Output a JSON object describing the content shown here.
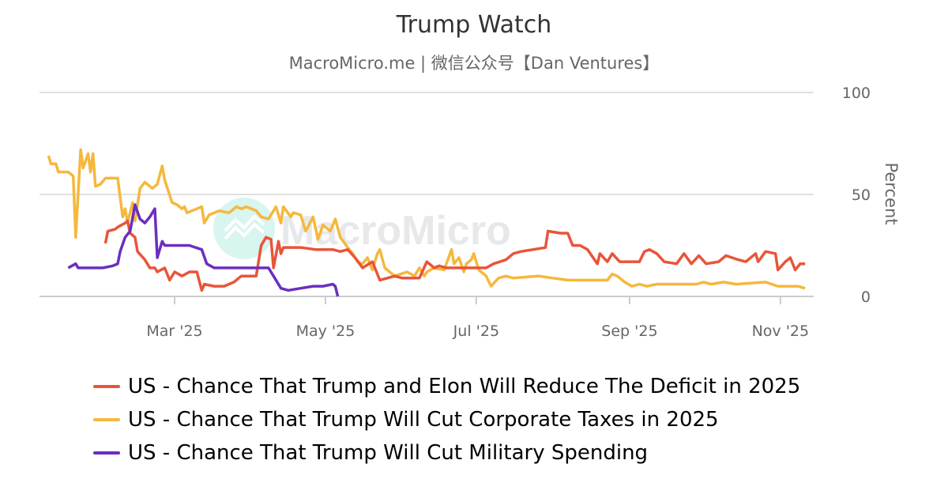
{
  "chart_data": {
    "type": "line",
    "title": "Trump Watch",
    "subtitle": "MacroMicro.me | 微信公众号【Dan Ventures】",
    "watermark": "MacroMicro",
    "ylabel": "Percent",
    "ylim": [
      0,
      100
    ],
    "yticks": [
      "0",
      "50",
      "100"
    ],
    "xlim": [
      "2025-01-05",
      "2025-11-15"
    ],
    "xticks": [
      {
        "date": "2025-03-01",
        "label": "Mar '25"
      },
      {
        "date": "2025-05-01",
        "label": "May '25"
      },
      {
        "date": "2025-07-01",
        "label": "Jul '25"
      },
      {
        "date": "2025-09-01",
        "label": "Sep '25"
      },
      {
        "date": "2025-11-01",
        "label": "Nov '25"
      }
    ],
    "grid": "horizontal",
    "legend_position": "bottom",
    "series": [
      {
        "name": "US - Chance That Trump and Elon Will Reduce The Deficit in 2025",
        "color": "#e8553a",
        "points": [
          [
            "2025-02-01",
            26
          ],
          [
            "2025-02-02",
            32
          ],
          [
            "2025-02-05",
            33
          ],
          [
            "2025-02-06",
            34
          ],
          [
            "2025-02-09",
            36
          ],
          [
            "2025-02-10",
            37
          ],
          [
            "2025-02-11",
            31
          ],
          [
            "2025-02-13",
            29
          ],
          [
            "2025-02-14",
            22
          ],
          [
            "2025-02-17",
            18
          ],
          [
            "2025-02-19",
            14
          ],
          [
            "2025-02-21",
            14
          ],
          [
            "2025-02-22",
            12
          ],
          [
            "2025-02-25",
            14
          ],
          [
            "2025-02-27",
            8
          ],
          [
            "2025-03-01",
            12
          ],
          [
            "2025-03-04",
            10
          ],
          [
            "2025-03-07",
            12
          ],
          [
            "2025-03-10",
            12
          ],
          [
            "2025-03-12",
            3
          ],
          [
            "2025-03-13",
            6
          ],
          [
            "2025-03-17",
            5
          ],
          [
            "2025-03-21",
            5
          ],
          [
            "2025-03-25",
            7
          ],
          [
            "2025-03-28",
            10
          ],
          [
            "2025-03-31",
            10
          ],
          [
            "2025-04-03",
            10
          ],
          [
            "2025-04-05",
            25
          ],
          [
            "2025-04-07",
            29
          ],
          [
            "2025-04-09",
            28
          ],
          [
            "2025-04-10",
            14
          ],
          [
            "2025-04-12",
            27
          ],
          [
            "2025-04-13",
            21
          ],
          [
            "2025-04-14",
            24
          ],
          [
            "2025-04-21",
            24
          ],
          [
            "2025-04-27",
            23
          ],
          [
            "2025-05-04",
            23
          ],
          [
            "2025-05-07",
            22
          ],
          [
            "2025-05-10",
            23
          ],
          [
            "2025-05-13",
            19
          ],
          [
            "2025-05-16",
            14
          ],
          [
            "2025-05-20",
            17
          ],
          [
            "2025-05-23",
            8
          ],
          [
            "2025-05-26",
            9
          ],
          [
            "2025-05-29",
            10
          ],
          [
            "2025-06-01",
            9
          ],
          [
            "2025-06-05",
            9
          ],
          [
            "2025-06-08",
            9
          ],
          [
            "2025-06-11",
            17
          ],
          [
            "2025-06-14",
            14
          ],
          [
            "2025-06-16",
            15
          ],
          [
            "2025-06-19",
            14
          ],
          [
            "2025-06-24",
            14
          ],
          [
            "2025-06-30",
            14
          ],
          [
            "2025-07-05",
            14
          ],
          [
            "2025-07-08",
            16
          ],
          [
            "2025-07-13",
            18
          ],
          [
            "2025-07-16",
            21
          ],
          [
            "2025-07-19",
            22
          ],
          [
            "2025-07-24",
            23
          ],
          [
            "2025-07-29",
            24
          ],
          [
            "2025-07-30",
            32
          ],
          [
            "2025-08-04",
            31
          ],
          [
            "2025-08-07",
            31
          ],
          [
            "2025-08-09",
            25
          ],
          [
            "2025-08-12",
            25
          ],
          [
            "2025-08-15",
            23
          ],
          [
            "2025-08-19",
            16
          ],
          [
            "2025-08-20",
            21
          ],
          [
            "2025-08-23",
            17
          ],
          [
            "2025-08-25",
            21
          ],
          [
            "2025-08-28",
            17
          ],
          [
            "2025-09-05",
            17
          ],
          [
            "2025-09-07",
            22
          ],
          [
            "2025-09-09",
            23
          ],
          [
            "2025-09-12",
            21
          ],
          [
            "2025-09-15",
            17
          ],
          [
            "2025-09-20",
            16
          ],
          [
            "2025-09-23",
            21
          ],
          [
            "2025-09-26",
            16
          ],
          [
            "2025-09-29",
            20
          ],
          [
            "2025-10-02",
            16
          ],
          [
            "2025-10-07",
            17
          ],
          [
            "2025-10-10",
            20
          ],
          [
            "2025-10-15",
            18
          ],
          [
            "2025-10-18",
            17
          ],
          [
            "2025-10-22",
            21
          ],
          [
            "2025-10-23",
            17
          ],
          [
            "2025-10-26",
            22
          ],
          [
            "2025-10-30",
            21
          ],
          [
            "2025-10-31",
            13
          ],
          [
            "2025-11-03",
            17
          ],
          [
            "2025-11-05",
            19
          ],
          [
            "2025-11-07",
            13
          ],
          [
            "2025-11-09",
            16
          ],
          [
            "2025-11-11",
            16
          ]
        ]
      },
      {
        "name": "US - Chance That Trump Will Cut Corporate Taxes in 2025",
        "color": "#f5b83d",
        "points": [
          [
            "2025-01-09",
            69
          ],
          [
            "2025-01-10",
            65
          ],
          [
            "2025-01-12",
            65
          ],
          [
            "2025-01-13",
            61
          ],
          [
            "2025-01-17",
            61
          ],
          [
            "2025-01-19",
            59
          ],
          [
            "2025-01-20",
            29
          ],
          [
            "2025-01-22",
            72
          ],
          [
            "2025-01-23",
            63
          ],
          [
            "2025-01-25",
            70
          ],
          [
            "2025-01-26",
            61
          ],
          [
            "2025-01-27",
            70
          ],
          [
            "2025-01-28",
            54
          ],
          [
            "2025-01-30",
            55
          ],
          [
            "2025-02-01",
            58
          ],
          [
            "2025-02-06",
            58
          ],
          [
            "2025-02-08",
            39
          ],
          [
            "2025-02-09",
            43
          ],
          [
            "2025-02-10",
            36
          ],
          [
            "2025-02-12",
            46
          ],
          [
            "2025-02-13",
            37
          ],
          [
            "2025-02-15",
            53
          ],
          [
            "2025-02-17",
            56
          ],
          [
            "2025-02-20",
            53
          ],
          [
            "2025-02-22",
            55
          ],
          [
            "2025-02-24",
            64
          ],
          [
            "2025-02-25",
            57
          ],
          [
            "2025-02-28",
            46
          ],
          [
            "2025-03-02",
            45
          ],
          [
            "2025-03-04",
            43
          ],
          [
            "2025-03-05",
            44
          ],
          [
            "2025-03-06",
            41
          ],
          [
            "2025-03-12",
            44
          ],
          [
            "2025-03-13",
            36
          ],
          [
            "2025-03-15",
            40
          ],
          [
            "2025-03-17",
            41
          ],
          [
            "2025-03-19",
            42
          ],
          [
            "2025-03-23",
            41
          ],
          [
            "2025-03-26",
            44
          ],
          [
            "2025-03-28",
            43
          ],
          [
            "2025-03-30",
            44
          ],
          [
            "2025-04-03",
            42
          ],
          [
            "2025-04-05",
            39
          ],
          [
            "2025-04-08",
            38
          ],
          [
            "2025-04-11",
            44
          ],
          [
            "2025-04-13",
            36
          ],
          [
            "2025-04-14",
            44
          ],
          [
            "2025-04-17",
            39
          ],
          [
            "2025-04-18",
            41
          ],
          [
            "2025-04-21",
            40
          ],
          [
            "2025-04-23",
            32
          ],
          [
            "2025-04-26",
            39
          ],
          [
            "2025-04-28",
            28
          ],
          [
            "2025-04-30",
            35
          ],
          [
            "2025-05-03",
            32
          ],
          [
            "2025-05-05",
            38
          ],
          [
            "2025-05-07",
            29
          ],
          [
            "2025-05-10",
            24
          ],
          [
            "2025-05-12",
            21
          ],
          [
            "2025-05-14",
            17
          ],
          [
            "2025-05-16",
            16
          ],
          [
            "2025-05-18",
            19
          ],
          [
            "2025-05-20",
            13
          ],
          [
            "2025-05-22",
            21
          ],
          [
            "2025-05-23",
            23
          ],
          [
            "2025-05-25",
            14
          ],
          [
            "2025-05-29",
            10
          ],
          [
            "2025-06-03",
            12
          ],
          [
            "2025-06-06",
            10
          ],
          [
            "2025-06-08",
            14
          ],
          [
            "2025-06-10",
            10
          ],
          [
            "2025-06-11",
            12
          ],
          [
            "2025-06-14",
            14
          ],
          [
            "2025-06-18",
            13
          ],
          [
            "2025-06-21",
            23
          ],
          [
            "2025-06-22",
            16
          ],
          [
            "2025-06-24",
            19
          ],
          [
            "2025-06-26",
            12
          ],
          [
            "2025-06-27",
            16
          ],
          [
            "2025-06-29",
            18
          ],
          [
            "2025-06-30",
            21
          ],
          [
            "2025-07-02",
            13
          ],
          [
            "2025-07-05",
            10
          ],
          [
            "2025-07-07",
            5
          ],
          [
            "2025-07-10",
            9
          ],
          [
            "2025-07-13",
            10
          ],
          [
            "2025-07-16",
            9
          ],
          [
            "2025-07-26",
            10
          ],
          [
            "2025-08-01",
            9
          ],
          [
            "2025-08-07",
            8
          ],
          [
            "2025-08-23",
            8
          ],
          [
            "2025-08-25",
            11
          ],
          [
            "2025-08-27",
            10
          ],
          [
            "2025-08-30",
            7
          ],
          [
            "2025-09-02",
            5
          ],
          [
            "2025-09-05",
            6
          ],
          [
            "2025-09-08",
            5
          ],
          [
            "2025-09-12",
            6
          ],
          [
            "2025-09-28",
            6
          ],
          [
            "2025-10-01",
            7
          ],
          [
            "2025-10-04",
            6
          ],
          [
            "2025-10-09",
            7
          ],
          [
            "2025-10-14",
            6
          ],
          [
            "2025-10-26",
            7
          ],
          [
            "2025-10-31",
            5
          ],
          [
            "2025-11-05",
            5
          ],
          [
            "2025-11-08",
            5
          ],
          [
            "2025-11-11",
            4
          ]
        ]
      },
      {
        "name": "US - Chance That Trump Will Cut Military Spending",
        "color": "#6a2fc0",
        "points": [
          [
            "2025-01-17",
            14
          ],
          [
            "2025-01-20",
            16
          ],
          [
            "2025-01-21",
            14
          ],
          [
            "2025-01-25",
            14
          ],
          [
            "2025-01-31",
            14
          ],
          [
            "2025-02-04",
            15
          ],
          [
            "2025-02-06",
            16
          ],
          [
            "2025-02-07",
            22
          ],
          [
            "2025-02-09",
            29
          ],
          [
            "2025-02-11",
            32
          ],
          [
            "2025-02-13",
            45
          ],
          [
            "2025-02-15",
            38
          ],
          [
            "2025-02-17",
            36
          ],
          [
            "2025-02-19",
            39
          ],
          [
            "2025-02-21",
            43
          ],
          [
            "2025-02-22",
            19
          ],
          [
            "2025-02-24",
            27
          ],
          [
            "2025-02-25",
            25
          ],
          [
            "2025-03-01",
            25
          ],
          [
            "2025-03-07",
            25
          ],
          [
            "2025-03-12",
            23
          ],
          [
            "2025-03-14",
            16
          ],
          [
            "2025-03-17",
            14
          ],
          [
            "2025-03-23",
            14
          ],
          [
            "2025-03-29",
            14
          ],
          [
            "2025-04-05",
            14
          ],
          [
            "2025-04-08",
            14
          ],
          [
            "2025-04-10",
            10
          ],
          [
            "2025-04-13",
            4
          ],
          [
            "2025-04-16",
            3
          ],
          [
            "2025-04-21",
            4
          ],
          [
            "2025-04-26",
            5
          ],
          [
            "2025-04-30",
            5
          ],
          [
            "2025-05-04",
            6
          ],
          [
            "2025-05-05",
            5
          ],
          [
            "2025-05-06",
            0
          ]
        ]
      }
    ]
  }
}
